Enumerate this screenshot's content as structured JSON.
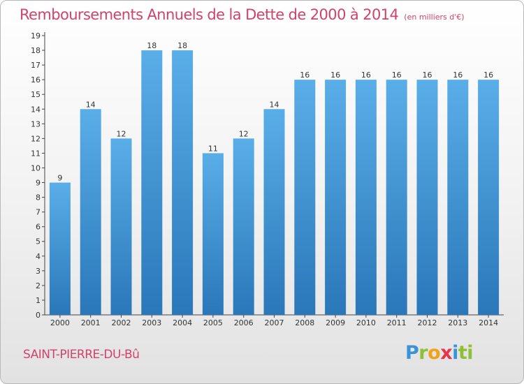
{
  "chart_data": {
    "type": "bar",
    "title": "Remboursements Annuels de la Dette de 2000 à 2014",
    "unit_note": "(en milliers d'€)",
    "categories": [
      "2000",
      "2001",
      "2002",
      "2003",
      "2004",
      "2005",
      "2006",
      "2007",
      "2008",
      "2009",
      "2010",
      "2011",
      "2012",
      "2013",
      "2014"
    ],
    "values": [
      9,
      14,
      12,
      18,
      18,
      11,
      12,
      14,
      16,
      16,
      16,
      16,
      16,
      16,
      16
    ],
    "ylim": [
      0,
      19
    ],
    "yticks": [
      0,
      1,
      2,
      3,
      4,
      5,
      6,
      7,
      8,
      9,
      10,
      11,
      12,
      13,
      14,
      15,
      16,
      17,
      18,
      19
    ],
    "xlabel": "",
    "ylabel": "",
    "grid": false,
    "bar_color_top": "#5aaee8",
    "bar_color_bottom": "#2a77b9"
  },
  "footer": {
    "place": "SAINT-PIERRE-DU-Bû",
    "brand_letters": [
      "P",
      "r",
      "o",
      "x",
      "i",
      "ti"
    ]
  }
}
